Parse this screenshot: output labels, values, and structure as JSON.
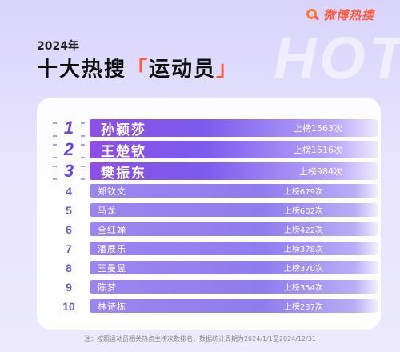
{
  "brand": {
    "text": "微博热搜"
  },
  "watermark": "HOT",
  "header": {
    "year": "2024年",
    "title_prefix": "十大热搜",
    "bracket_open": "「",
    "topic": "运动员",
    "bracket_close": "」"
  },
  "ranking": [
    {
      "rank": "1",
      "name": "孙颖莎",
      "count": "上榜1563次"
    },
    {
      "rank": "2",
      "name": "王楚钦",
      "count": "上榜1516次"
    },
    {
      "rank": "3",
      "name": "樊振东",
      "count": "上榜984次"
    },
    {
      "rank": "4",
      "name": "郑钦文",
      "count": "上榜679次"
    },
    {
      "rank": "5",
      "name": "马龙",
      "count": "上榜602次"
    },
    {
      "rank": "6",
      "name": "全红婵",
      "count": "上榜422次"
    },
    {
      "rank": "7",
      "name": "潘展乐",
      "count": "上榜378次"
    },
    {
      "rank": "8",
      "name": "王曼昱",
      "count": "上榜370次"
    },
    {
      "rank": "9",
      "name": "陈梦",
      "count": "上榜354次"
    },
    {
      "rank": "10",
      "name": "林诗栋",
      "count": "上榜237次"
    }
  ],
  "footnote": "注：按照运动员相关热点主榜次数排名，数据统计周期为2024/1/1至2024/12/31",
  "colors": {
    "accent": "#ff5a3a",
    "bar_purple": "#7c5bee"
  }
}
